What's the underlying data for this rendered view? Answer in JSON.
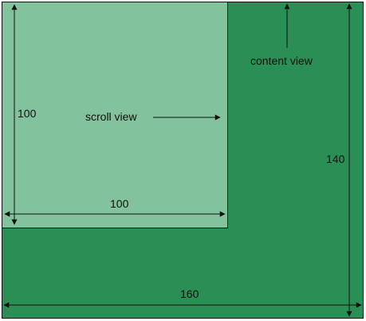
{
  "colors": {
    "content_fill": "#2a8f55",
    "scroll_fill": "#82c29c",
    "stroke": "#111111"
  },
  "labels": {
    "content_view": "content view",
    "scroll_view": "scroll view"
  },
  "dimensions": {
    "content_width": "160",
    "content_height": "140",
    "scroll_width": "100",
    "scroll_height": "100"
  }
}
